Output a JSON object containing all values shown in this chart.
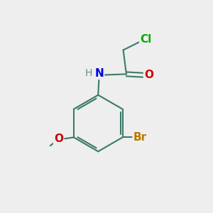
{
  "bg_color": "#eeeeee",
  "bond_color": "#3a7a6a",
  "bond_width": 1.5,
  "atom_colors": {
    "Cl": "#00aa00",
    "O": "#cc0000",
    "N": "#0000dd",
    "Br": "#bb7700",
    "H": "#6a8a8a",
    "C": "#3a7a6a"
  },
  "font_size_atoms": 11,
  "font_size_small": 10
}
